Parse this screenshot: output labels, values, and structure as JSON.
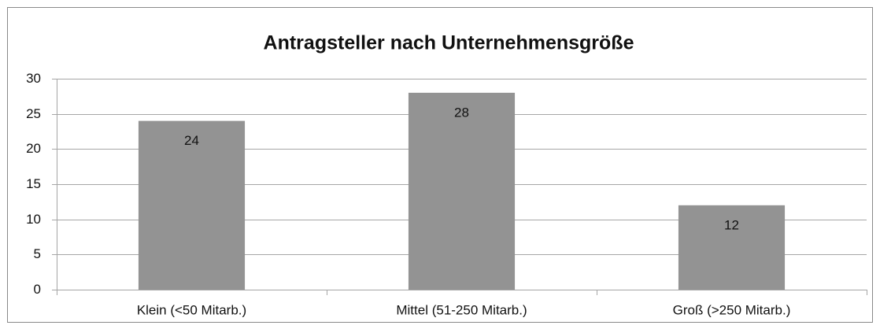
{
  "chart_data": {
    "type": "bar",
    "title": "Antragsteller nach Unternehmensgröße",
    "categories": [
      "Klein (<50 Mitarb.)",
      "Mittel (51-250 Mitarb.)",
      "Groß (>250 Mitarb.)"
    ],
    "values": [
      24,
      28,
      12
    ],
    "color": "#939393",
    "ylim": [
      0,
      30
    ],
    "yticks": [
      0,
      5,
      10,
      15,
      20,
      25,
      30
    ],
    "grid": true
  }
}
